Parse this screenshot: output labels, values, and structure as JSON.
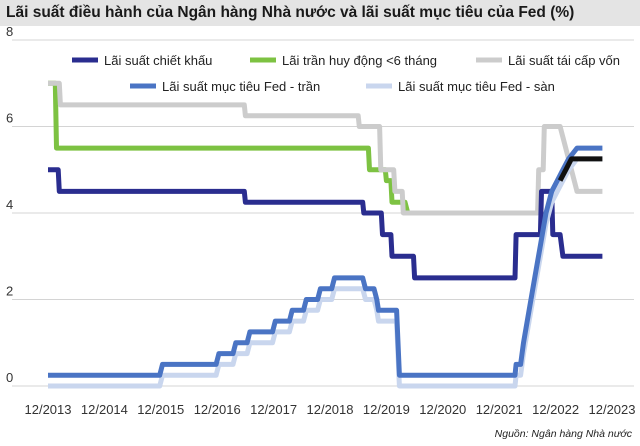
{
  "title": "Lãi suất điều hành của Ngân hàng Nhà nước và lãi suất mục tiêu của Fed (%)",
  "source": "Nguồn: Ngân hàng Nhà nước",
  "chart_data": {
    "type": "line",
    "xlabel": "",
    "ylabel": "",
    "ylim": [
      0,
      8
    ],
    "yticks": [
      0,
      2,
      4,
      6,
      8
    ],
    "xticks": [
      "12/2013",
      "12/2014",
      "12/2015",
      "12/2016",
      "12/2017",
      "12/2018",
      "12/2019",
      "12/2020",
      "12/2021",
      "12/2022",
      "12/2023"
    ],
    "grid": "horizontal",
    "legend_position": "top",
    "series": [
      {
        "name": "Lãi suất chiết khấu",
        "color": "#2a2d8f",
        "points": [
          [
            2013.92,
            5
          ],
          [
            2014.1,
            5
          ],
          [
            2014.12,
            4.5
          ],
          [
            2017.4,
            4.5
          ],
          [
            2017.42,
            4.25
          ],
          [
            2019.5,
            4.25
          ],
          [
            2019.52,
            4
          ],
          [
            2019.83,
            4
          ],
          [
            2019.85,
            3.5
          ],
          [
            2020.0,
            3.5
          ],
          [
            2020.02,
            3
          ],
          [
            2020.4,
            3
          ],
          [
            2020.42,
            2.5
          ],
          [
            2022.0,
            2.5
          ],
          [
            2022.2,
            2.5
          ],
          [
            2022.22,
            3.5
          ],
          [
            2022.65,
            3.5
          ],
          [
            2022.67,
            4.5
          ],
          [
            2022.85,
            4.5
          ],
          [
            2022.87,
            3.5
          ],
          [
            2023.0,
            3.5
          ],
          [
            2023.05,
            3
          ],
          [
            2023.75,
            3
          ]
        ]
      },
      {
        "name": "Lãi trần huy động <6 tháng",
        "color": "#7dc242",
        "points": [
          [
            2013.92,
            7
          ],
          [
            2014.05,
            7
          ],
          [
            2014.07,
            5.5
          ],
          [
            2019.6,
            5.5
          ],
          [
            2019.62,
            5
          ],
          [
            2019.9,
            5
          ],
          [
            2019.92,
            4.75
          ],
          [
            2020.0,
            4.75
          ],
          [
            2020.02,
            4.25
          ],
          [
            2020.25,
            4.25
          ],
          [
            2020.3,
            4.0
          ]
        ]
      },
      {
        "name": "Lãi suất tái cấp vốn",
        "color": "#cccccc",
        "points": [
          [
            2013.92,
            7
          ],
          [
            2014.12,
            7
          ],
          [
            2014.14,
            6.5
          ],
          [
            2017.4,
            6.5
          ],
          [
            2017.42,
            6.25
          ],
          [
            2019.42,
            6.25
          ],
          [
            2019.44,
            6
          ],
          [
            2019.7,
            6
          ],
          [
            2019.8,
            6
          ],
          [
            2019.82,
            5
          ],
          [
            2020.05,
            5
          ],
          [
            2020.07,
            4.5
          ],
          [
            2020.2,
            4.5
          ],
          [
            2020.22,
            4
          ],
          [
            2022.6,
            4
          ],
          [
            2022.62,
            5
          ],
          [
            2022.7,
            5
          ],
          [
            2022.72,
            6
          ],
          [
            2022.9,
            6
          ],
          [
            2023.0,
            6
          ],
          [
            2023.2,
            5
          ],
          [
            2023.3,
            4.5
          ],
          [
            2023.75,
            4.5
          ]
        ]
      },
      {
        "name": "Lãi suất mục tiêu Fed - trần",
        "color": "#4a74c4",
        "points": [
          [
            2013.92,
            0.25
          ],
          [
            2015.9,
            0.25
          ],
          [
            2015.95,
            0.5
          ],
          [
            2016.9,
            0.5
          ],
          [
            2016.95,
            0.75
          ],
          [
            2017.2,
            0.75
          ],
          [
            2017.25,
            1
          ],
          [
            2017.45,
            1
          ],
          [
            2017.5,
            1.25
          ],
          [
            2017.9,
            1.25
          ],
          [
            2017.95,
            1.5
          ],
          [
            2018.2,
            1.5
          ],
          [
            2018.25,
            1.75
          ],
          [
            2018.45,
            1.75
          ],
          [
            2018.5,
            2
          ],
          [
            2018.7,
            2
          ],
          [
            2018.75,
            2.25
          ],
          [
            2018.95,
            2.25
          ],
          [
            2019.0,
            2.5
          ],
          [
            2019.5,
            2.5
          ],
          [
            2019.55,
            2.25
          ],
          [
            2019.7,
            2.25
          ],
          [
            2019.75,
            2
          ],
          [
            2019.78,
            1.75
          ],
          [
            2020.1,
            1.75
          ],
          [
            2020.15,
            0.25
          ],
          [
            2022.2,
            0.25
          ],
          [
            2022.22,
            0.5
          ],
          [
            2022.3,
            0.5
          ],
          [
            2022.35,
            1
          ],
          [
            2022.45,
            1.75
          ],
          [
            2022.55,
            2.5
          ],
          [
            2022.65,
            3.25
          ],
          [
            2022.75,
            4
          ],
          [
            2022.85,
            4.5
          ],
          [
            2022.95,
            4.75
          ],
          [
            2023.05,
            5
          ],
          [
            2023.15,
            5.25
          ],
          [
            2023.3,
            5.5
          ],
          [
            2023.75,
            5.5
          ]
        ]
      },
      {
        "name": "Lãi suất mục tiêu Fed - sàn",
        "color": "#c9d6ee",
        "points": [
          [
            2013.92,
            0
          ],
          [
            2015.9,
            0
          ],
          [
            2015.95,
            0.25
          ],
          [
            2016.9,
            0.25
          ],
          [
            2016.95,
            0.5
          ],
          [
            2017.2,
            0.5
          ],
          [
            2017.25,
            0.75
          ],
          [
            2017.45,
            0.75
          ],
          [
            2017.5,
            1
          ],
          [
            2017.9,
            1
          ],
          [
            2017.95,
            1.25
          ],
          [
            2018.2,
            1.25
          ],
          [
            2018.25,
            1.5
          ],
          [
            2018.45,
            1.5
          ],
          [
            2018.5,
            1.75
          ],
          [
            2018.7,
            1.75
          ],
          [
            2018.75,
            2
          ],
          [
            2018.95,
            2
          ],
          [
            2019.0,
            2.25
          ],
          [
            2019.5,
            2.25
          ],
          [
            2019.55,
            2
          ],
          [
            2019.7,
            2
          ],
          [
            2019.75,
            1.75
          ],
          [
            2019.78,
            1.5
          ],
          [
            2020.1,
            1.5
          ],
          [
            2020.15,
            0
          ],
          [
            2022.2,
            0
          ],
          [
            2022.22,
            0.25
          ],
          [
            2022.3,
            0.25
          ],
          [
            2022.35,
            0.75
          ],
          [
            2022.45,
            1.5
          ],
          [
            2022.55,
            2.25
          ],
          [
            2022.65,
            3
          ],
          [
            2022.75,
            3.75
          ],
          [
            2022.85,
            4.25
          ],
          [
            2022.95,
            4.5
          ],
          [
            2023.05,
            4.75
          ],
          [
            2023.15,
            5
          ],
          [
            2023.3,
            5.25
          ],
          [
            2023.75,
            5.25
          ]
        ]
      },
      {
        "name": "",
        "color": "#111111",
        "points": [
          [
            2023.0,
            4.75
          ],
          [
            2023.1,
            5
          ],
          [
            2023.2,
            5.25
          ],
          [
            2023.75,
            5.25
          ]
        ]
      }
    ]
  }
}
